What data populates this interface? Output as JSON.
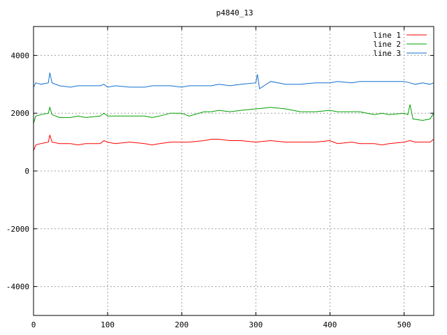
{
  "chart_data": {
    "type": "line",
    "title": "p4840_13",
    "xlabel": "",
    "ylabel": "",
    "xlim": [
      0,
      540
    ],
    "ylim": [
      -5000,
      5000
    ],
    "xticks": [
      0,
      100,
      200,
      300,
      400,
      500
    ],
    "yticks": [
      -4000,
      -2000,
      0,
      2000,
      4000
    ],
    "grid": true,
    "legend_position": "top-right",
    "series": [
      {
        "name": "line 1",
        "color": "#ff0000",
        "x": [
          0,
          3,
          10,
          20,
          22,
          25,
          35,
          50,
          60,
          70,
          90,
          95,
          100,
          110,
          130,
          150,
          160,
          170,
          185,
          200,
          210,
          230,
          240,
          250,
          265,
          280,
          300,
          320,
          340,
          360,
          380,
          400,
          410,
          430,
          440,
          460,
          470,
          480,
          500,
          508,
          515,
          525,
          535,
          540
        ],
        "y": [
          700,
          900,
          950,
          1000,
          1250,
          1000,
          950,
          950,
          900,
          950,
          950,
          1050,
          1000,
          950,
          1000,
          950,
          900,
          950,
          1000,
          1000,
          1000,
          1050,
          1100,
          1100,
          1050,
          1050,
          1000,
          1050,
          1000,
          1000,
          1000,
          1050,
          950,
          1000,
          950,
          950,
          900,
          950,
          1000,
          1050,
          1000,
          1000,
          1000,
          1100
        ]
      },
      {
        "name": "line 2",
        "color": "#00a000",
        "x": [
          0,
          3,
          10,
          20,
          22,
          25,
          35,
          50,
          60,
          70,
          90,
          95,
          100,
          110,
          130,
          150,
          160,
          170,
          185,
          200,
          210,
          230,
          240,
          250,
          265,
          280,
          300,
          320,
          340,
          360,
          380,
          400,
          410,
          430,
          440,
          460,
          470,
          480,
          500,
          505,
          508,
          512,
          525,
          535,
          540
        ],
        "y": [
          1650,
          1900,
          1950,
          2000,
          2200,
          1950,
          1850,
          1850,
          1900,
          1850,
          1900,
          2000,
          1900,
          1900,
          1900,
          1900,
          1850,
          1900,
          2000,
          2000,
          1900,
          2050,
          2050,
          2100,
          2050,
          2100,
          2150,
          2200,
          2150,
          2050,
          2050,
          2100,
          2050,
          2050,
          2050,
          1950,
          2000,
          1950,
          2000,
          1950,
          2300,
          1800,
          1750,
          1800,
          2000
        ]
      },
      {
        "name": "line 3",
        "color": "#1070d0",
        "x": [
          0,
          3,
          10,
          20,
          22,
          25,
          35,
          50,
          60,
          70,
          90,
          95,
          100,
          110,
          130,
          150,
          160,
          170,
          185,
          200,
          210,
          230,
          240,
          250,
          265,
          280,
          300,
          302,
          305,
          320,
          340,
          360,
          380,
          400,
          410,
          430,
          440,
          460,
          470,
          480,
          500,
          508,
          515,
          525,
          535,
          540
        ],
        "y": [
          2900,
          3050,
          3000,
          3050,
          3400,
          3050,
          2950,
          2900,
          2950,
          2950,
          2950,
          3000,
          2900,
          2950,
          2900,
          2900,
          2950,
          2950,
          2950,
          2900,
          2950,
          2950,
          2950,
          3000,
          2950,
          3000,
          3050,
          3350,
          2850,
          3100,
          3000,
          3000,
          3050,
          3050,
          3100,
          3050,
          3100,
          3100,
          3100,
          3100,
          3100,
          3050,
          3000,
          3050,
          3000,
          3050
        ]
      }
    ]
  }
}
